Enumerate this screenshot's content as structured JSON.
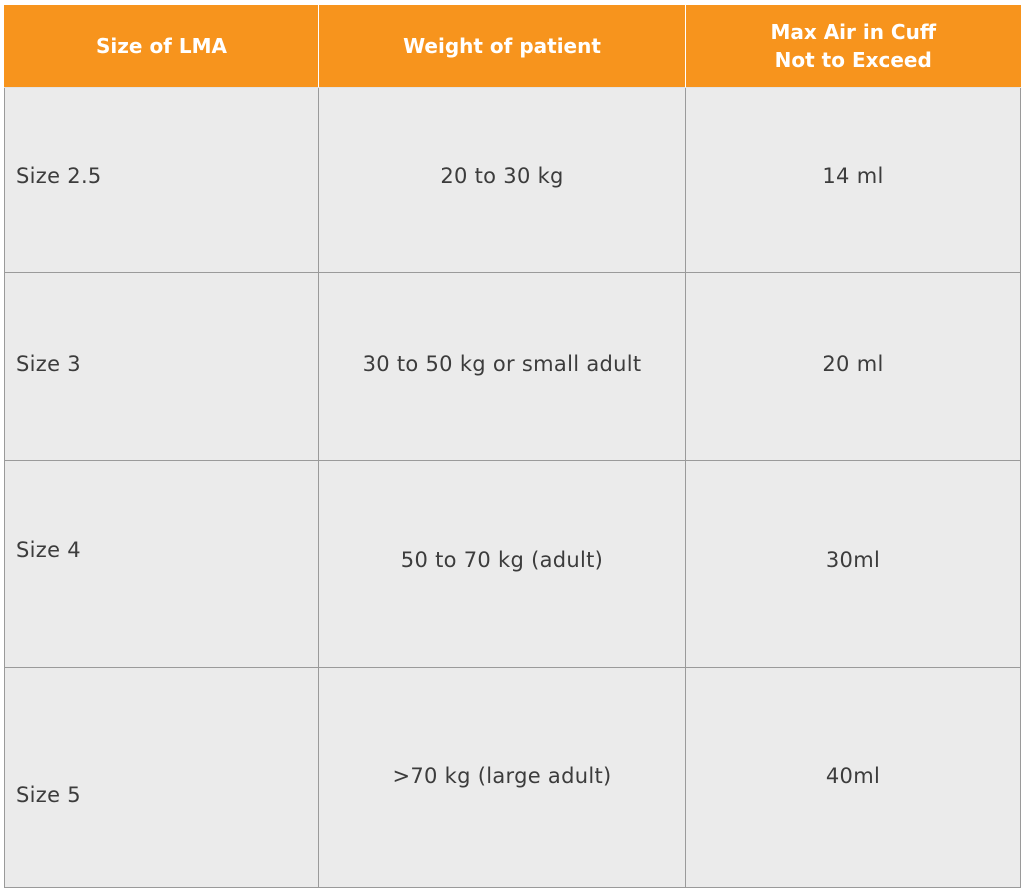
{
  "table": {
    "headers": [
      "Size of LMA",
      "Weight of patient",
      "Max Air in Cuff\nNot to Exceed"
    ],
    "rows": [
      {
        "size": "Size 2.5",
        "weight": "20 to 30 kg",
        "max_air": "14 ml"
      },
      {
        "size": "Size 3",
        "weight": "30 to 50 kg or small adult",
        "max_air": "20 ml"
      },
      {
        "size": "Size 4",
        "weight": "50 to 70 kg (adult)",
        "max_air": "30ml"
      },
      {
        "size": "Size 5",
        "weight": ">70 kg (large adult)",
        "max_air": "40ml"
      }
    ]
  },
  "colors": {
    "header_background": "#f7941d",
    "header_text": "#ffffff",
    "cell_background": "#ebebeb",
    "cell_text": "#3c3c3c",
    "grid_line": "#9a9a9a"
  }
}
